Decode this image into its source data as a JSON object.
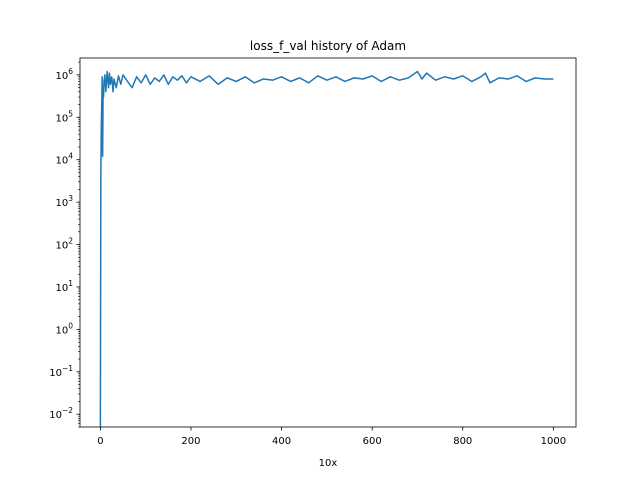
{
  "chart_data": {
    "type": "line",
    "title": "loss_f_val history of Adam",
    "xlabel": "10x",
    "ylabel": "",
    "yscale": "log",
    "xlim": [
      -45,
      1050
    ],
    "ylim": [
      0.005,
      2500000
    ],
    "xticks": [
      0,
      200,
      400,
      600,
      800,
      1000
    ],
    "yticks": [
      {
        "value": 0.01,
        "base": "10",
        "exp": "−2"
      },
      {
        "value": 0.1,
        "base": "10",
        "exp": "−1"
      },
      {
        "value": 1,
        "base": "10",
        "exp": "0"
      },
      {
        "value": 10,
        "base": "10",
        "exp": "1"
      },
      {
        "value": 100,
        "base": "10",
        "exp": "2"
      },
      {
        "value": 1000,
        "base": "10",
        "exp": "3"
      },
      {
        "value": 10000,
        "base": "10",
        "exp": "4"
      },
      {
        "value": 100000,
        "base": "10",
        "exp": "5"
      },
      {
        "value": 1000000,
        "base": "10",
        "exp": "6"
      }
    ],
    "grid": false,
    "legend": "none",
    "line_color": "#1f77b4",
    "series": [
      {
        "x": [
          0,
          1,
          2,
          3,
          4,
          5,
          6,
          7,
          8,
          10,
          12,
          15,
          18,
          20,
          22,
          25,
          28,
          30,
          35,
          40,
          45,
          50,
          60,
          70,
          80,
          90,
          100,
          110,
          120,
          130,
          140,
          150,
          160,
          170,
          180,
          190,
          200,
          220,
          240,
          260,
          280,
          300,
          320,
          340,
          360,
          380,
          400,
          420,
          440,
          460,
          480,
          500,
          520,
          540,
          560,
          580,
          600,
          620,
          640,
          660,
          680,
          700,
          710,
          720,
          740,
          760,
          780,
          800,
          820,
          840,
          850,
          860,
          880,
          900,
          920,
          940,
          960,
          980,
          1000
        ],
        "y": [
          0.005,
          4000,
          60000,
          200000,
          900000,
          12000,
          500000,
          300000,
          700000,
          1000000,
          400000,
          1200000,
          500000,
          1100000,
          600000,
          900000,
          400000,
          800000,
          500000,
          950000,
          600000,
          1000000,
          700000,
          500000,
          900000,
          650000,
          1000000,
          600000,
          850000,
          700000,
          1000000,
          600000,
          900000,
          750000,
          950000,
          650000,
          900000,
          700000,
          950000,
          600000,
          850000,
          700000,
          900000,
          650000,
          800000,
          750000,
          900000,
          700000,
          850000,
          650000,
          950000,
          750000,
          900000,
          700000,
          850000,
          800000,
          950000,
          700000,
          900000,
          750000,
          850000,
          1200000,
          800000,
          1100000,
          750000,
          900000,
          800000,
          950000,
          700000,
          900000,
          1100000,
          650000,
          850000,
          800000,
          950000,
          700000,
          850000,
          800000,
          800000
        ]
      }
    ]
  }
}
